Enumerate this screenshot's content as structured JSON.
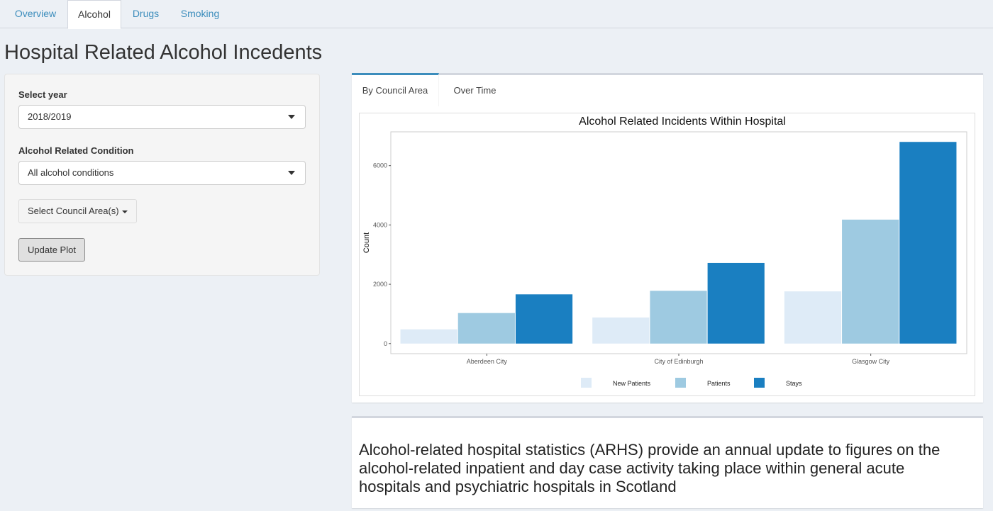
{
  "nav": {
    "tabs": [
      {
        "label": "Overview"
      },
      {
        "label": "Alcohol"
      },
      {
        "label": "Drugs"
      },
      {
        "label": "Smoking"
      }
    ]
  },
  "page": {
    "title": "Hospital Related Alcohol Incedents"
  },
  "sidebar": {
    "year_label": "Select year",
    "year_value": "2018/2019",
    "condition_label": "Alcohol Related Condition",
    "condition_value": "All alcohol conditions",
    "council_button": "Select Council Area(s)",
    "update_button": "Update Plot"
  },
  "plot_tabs": [
    {
      "label": "By Council Area"
    },
    {
      "label": "Over Time"
    }
  ],
  "colors": {
    "link": "#3c8dbc",
    "new_patients": "#deebf7",
    "patients": "#9ecae1",
    "stays": "#1a7fc1"
  },
  "chart_data": {
    "type": "bar",
    "title": "Alcohol Related Incidents Within Hospital",
    "xlabel": "",
    "ylabel": "Count",
    "categories": [
      "Aberdeen City",
      "City of Edinburgh",
      "Glasgow City"
    ],
    "series": [
      {
        "name": "New Patients",
        "values": [
          480,
          880,
          1760
        ]
      },
      {
        "name": "Patients",
        "values": [
          1030,
          1780,
          4180
        ]
      },
      {
        "name": "Stays",
        "values": [
          1660,
          2720,
          6800
        ]
      }
    ],
    "yticks": [
      0,
      2000,
      4000,
      6000
    ],
    "ylim": [
      -340,
      7140
    ],
    "legend": "bottom",
    "grid": false
  },
  "info": {
    "text": "Alcohol-related hospital statistics (ARHS) provide an annual update to figures on the alcohol-related inpatient and day case activity taking place within general acute hospitals and psychiatric hospitals in Scotland"
  }
}
